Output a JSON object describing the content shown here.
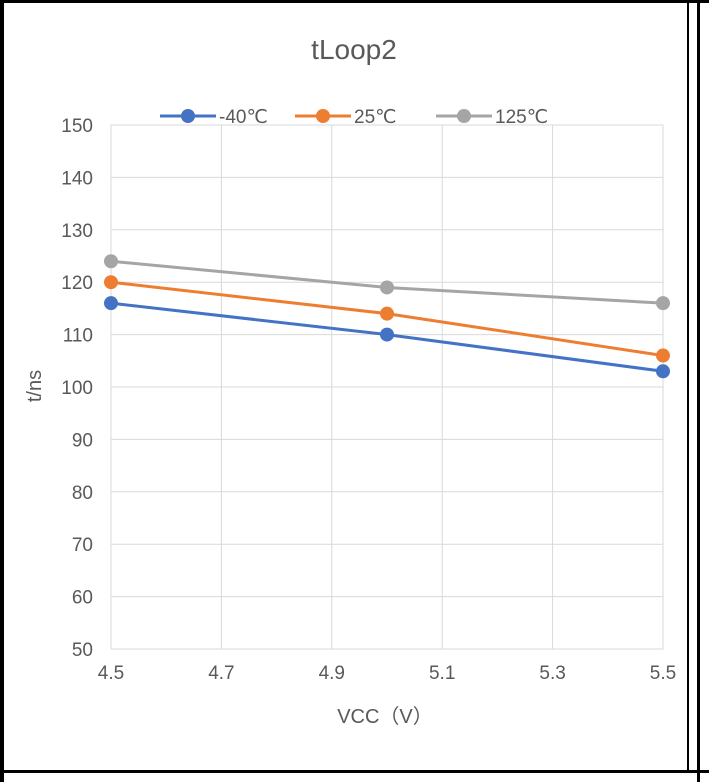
{
  "chart_data": {
    "type": "line",
    "title": "tLoop2",
    "xlabel": "VCC（V）",
    "ylabel": "t/ns",
    "x": [
      4.5,
      5.0,
      5.5
    ],
    "xlim": [
      4.5,
      5.5
    ],
    "xticks": [
      4.5,
      4.7,
      4.9,
      5.1,
      5.3,
      5.5
    ],
    "xtick_labels": [
      "4.5",
      "4.7",
      "4.9",
      "5.1",
      "5.3",
      "5.5"
    ],
    "ylim": [
      50,
      150
    ],
    "yticks": [
      50,
      60,
      70,
      80,
      90,
      100,
      110,
      120,
      130,
      140,
      150
    ],
    "ytick_labels": [
      "50",
      "60",
      "70",
      "80",
      "90",
      "100",
      "110",
      "120",
      "130",
      "140",
      "150"
    ],
    "grid": true,
    "legend_position": "top",
    "series": [
      {
        "name": "-40℃",
        "color": "#4472c4",
        "values": [
          116,
          110,
          103
        ]
      },
      {
        "name": "25℃",
        "color": "#ed7d31",
        "values": [
          120,
          114,
          106
        ]
      },
      {
        "name": "125℃",
        "color": "#a5a5a5",
        "values": [
          124,
          119,
          116
        ]
      }
    ]
  }
}
